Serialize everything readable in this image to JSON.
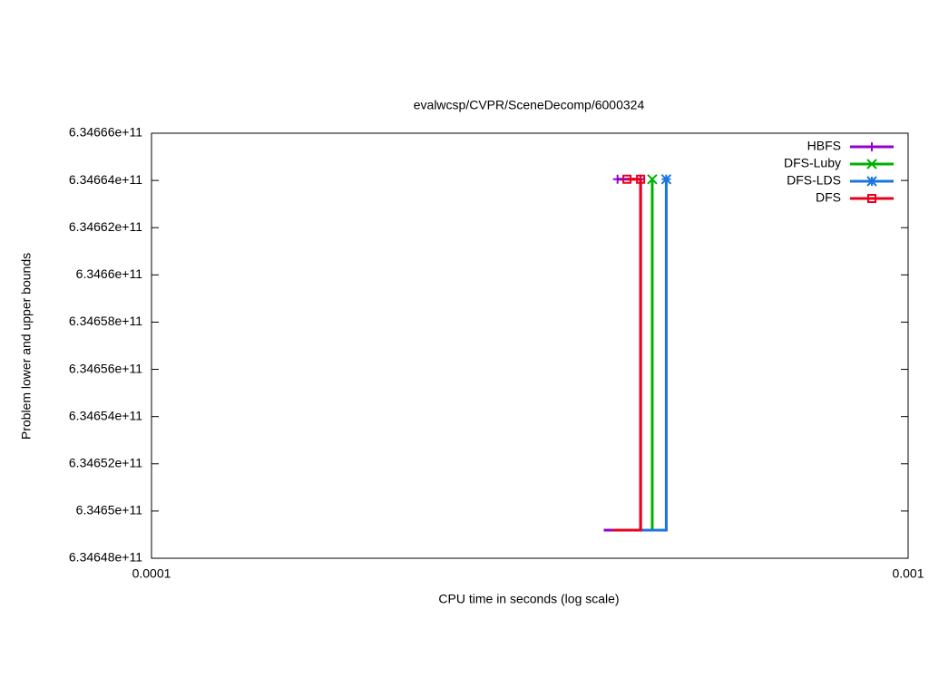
{
  "chart_data": {
    "type": "line",
    "title": "evalwcsp/CVPR/SceneDecomp/6000324",
    "x_label": "CPU time in seconds (log scale)",
    "y_label": "Problem lower and upper bounds",
    "x_log": true,
    "xlim": [
      0.0001,
      0.001
    ],
    "xticks": [
      0.0001,
      0.001
    ],
    "ylim": [
      634648000000,
      634666000000
    ],
    "yticks": [
      {
        "value": 634648000000,
        "label": "6.34648e+11"
      },
      {
        "value": 634650000000,
        "label": "6.3465e+11"
      },
      {
        "value": 634652000000,
        "label": "6.34652e+11"
      },
      {
        "value": 634654000000,
        "label": "6.34654e+11"
      },
      {
        "value": 634656000000,
        "label": "6.34656e+11"
      },
      {
        "value": 634658000000,
        "label": "6.34658e+11"
      },
      {
        "value": 634660000000,
        "label": "6.3466e+11"
      },
      {
        "value": 634662000000,
        "label": "6.34662e+11"
      },
      {
        "value": 634664000000,
        "label": "6.34664e+11"
      },
      {
        "value": 634666000000,
        "label": "6.34666e+11"
      }
    ],
    "legend": "top-right",
    "series": [
      {
        "name": "HBFS",
        "color": "#9400d3",
        "marker": "plus",
        "x": [
          0.000396,
          0.000443,
          0.000443,
          0.000413
        ],
        "values": [
          634649190000,
          634649190000,
          634664050000,
          634664050000
        ]
      },
      {
        "name": "DFS-Luby",
        "color": "#00b000",
        "marker": "cross",
        "x": [
          0.000407,
          0.000459,
          0.000459
        ],
        "values": [
          634649190000,
          634649190000,
          634664050000
        ]
      },
      {
        "name": "DFS-LDS",
        "color": "#1a75e0",
        "marker": "star",
        "x": [
          0.000407,
          0.000479,
          0.000479
        ],
        "values": [
          634649190000,
          634649190000,
          634664050000
        ]
      },
      {
        "name": "DFS",
        "color": "#e8001c",
        "marker": "square",
        "x": [
          0.000407,
          0.000443,
          0.000443,
          0.000425
        ],
        "values": [
          634649190000,
          634649190000,
          634664050000,
          634664050000
        ]
      }
    ]
  }
}
